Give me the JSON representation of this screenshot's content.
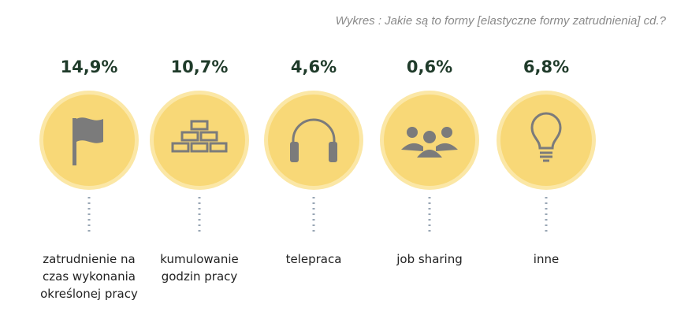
{
  "chart_data": {
    "type": "pictograph",
    "title": "Wykres : Jakie są to formy [elastyczne formy zatrudnienia] cd.?",
    "categories": [
      "zatrudnienie na czas wykonania określonej pracy",
      "kumulowanie godzin pracy",
      "telepraca",
      "job sharing",
      "inne"
    ],
    "values": [
      14.9,
      10.7,
      4.6,
      0.6,
      6.8
    ],
    "value_labels": [
      "14,9%",
      "10,7%",
      "4,6%",
      "0,6%",
      "6,8%"
    ],
    "color": "#f8d877"
  }
}
